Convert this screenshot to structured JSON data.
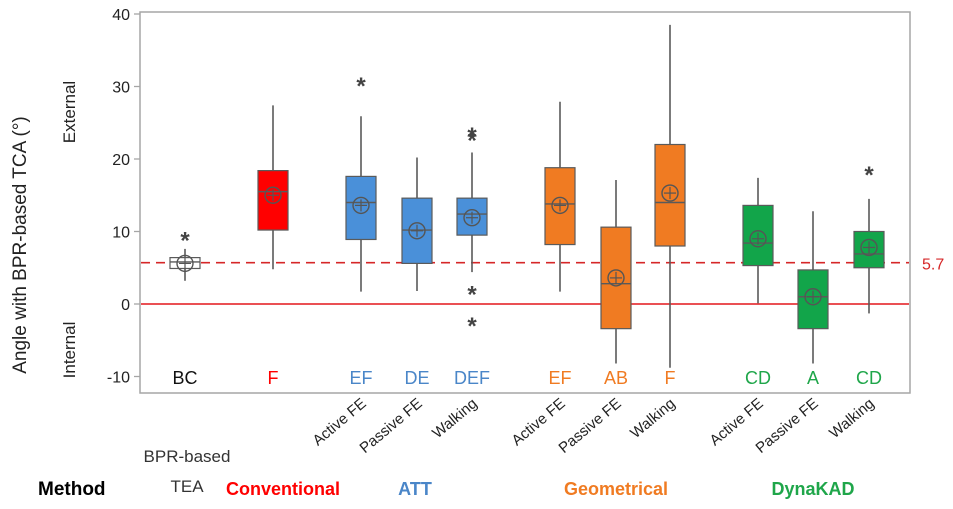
{
  "chart_data": {
    "type": "boxplot",
    "ylabel": "Angle with BPR-based TCA (°)",
    "ylim": [
      -12,
      40
    ],
    "yticks": [
      -10,
      0,
      10,
      20,
      30,
      40
    ],
    "direction_labels": {
      "top": "External",
      "bottom": "Internal"
    },
    "reference_lines": [
      {
        "value": 5.7,
        "label": "5.7",
        "style": "dashed",
        "color": "#d62728"
      },
      {
        "value": 0,
        "label": "",
        "style": "solid",
        "color": "#e4161b"
      }
    ],
    "method_header": "Method",
    "groups": [
      {
        "name": "BPR-based TEA",
        "name_lines": [
          "BPR-based",
          "TEA"
        ],
        "color": "#333333",
        "boxes": [
          {
            "label": "",
            "letters": "BC",
            "fill": "#ffffff",
            "min": 3.2,
            "q1": 4.9,
            "median": 5.8,
            "q3": 6.4,
            "max": 7.6,
            "mean": 5.6,
            "outliers": [
              9.2
            ]
          }
        ]
      },
      {
        "name": "Conventional",
        "name_lines": [
          "Conventional"
        ],
        "color": "#ff0000",
        "boxes": [
          {
            "label": "",
            "letters": "F",
            "fill": "#ff0000",
            "min": 4.8,
            "q1": 10.2,
            "median": 15.5,
            "q3": 18.4,
            "max": 27.4,
            "mean": 15.0,
            "outliers": []
          }
        ]
      },
      {
        "name": "ATT",
        "name_lines": [
          "ATT"
        ],
        "color": "#4a86c8",
        "boxes": [
          {
            "label": "Active FE",
            "letters": "EF",
            "fill": "#4a90d9",
            "min": 1.7,
            "q1": 8.9,
            "median": 14.0,
            "q3": 17.6,
            "max": 25.9,
            "mean": 13.6,
            "outliers": [
              30.5
            ]
          },
          {
            "label": "Passive FE",
            "letters": "DE",
            "fill": "#4a90d9",
            "min": 1.8,
            "q1": 5.6,
            "median": 10.2,
            "q3": 14.6,
            "max": 20.2,
            "mean": 10.1,
            "outliers": []
          },
          {
            "label": "Walking",
            "letters": "DEF",
            "fill": "#4a90d9",
            "min": 4.4,
            "q1": 9.5,
            "median": 12.4,
            "q3": 14.6,
            "max": 20.9,
            "mean": 11.9,
            "outliers": [
              23.0,
              23.6,
              1.7,
              -2.6
            ]
          }
        ]
      },
      {
        "name": "Geometrical",
        "name_lines": [
          "Geometrical"
        ],
        "color": "#f07b22",
        "boxes": [
          {
            "label": "Active FE",
            "letters": "EF",
            "fill": "#f07b22",
            "min": 1.7,
            "q1": 8.2,
            "median": 13.8,
            "q3": 18.8,
            "max": 27.9,
            "mean": 13.6,
            "outliers": []
          },
          {
            "label": "Passive FE",
            "letters": "AB",
            "fill": "#f07b22",
            "min": -8.2,
            "q1": -3.4,
            "median": 2.8,
            "q3": 10.6,
            "max": 17.1,
            "mean": 3.6,
            "outliers": []
          },
          {
            "label": "Walking",
            "letters": "F",
            "fill": "#f07b22",
            "min": -8.8,
            "q1": 8.0,
            "median": 14.0,
            "q3": 22.0,
            "max": 38.5,
            "mean": 15.3,
            "outliers": []
          }
        ]
      },
      {
        "name": "DynaKAD",
        "name_lines": [
          "DynaKAD"
        ],
        "color": "#1fa64a",
        "boxes": [
          {
            "label": "Active FE",
            "letters": "CD",
            "fill": "#12a54a",
            "min": 0.1,
            "q1": 5.3,
            "median": 8.4,
            "q3": 13.6,
            "max": 17.4,
            "mean": 9.0,
            "outliers": []
          },
          {
            "label": "Passive FE",
            "letters": "A",
            "fill": "#12a54a",
            "min": -8.2,
            "q1": -3.4,
            "median": 1.0,
            "q3": 4.7,
            "max": 12.8,
            "mean": 1.0,
            "outliers": []
          },
          {
            "label": "Walking",
            "letters": "CD",
            "fill": "#12a54a",
            "min": -1.3,
            "q1": 5.0,
            "median": 6.9,
            "q3": 10.0,
            "max": 14.5,
            "mean": 7.8,
            "outliers": [
              18.2
            ]
          }
        ]
      }
    ]
  }
}
